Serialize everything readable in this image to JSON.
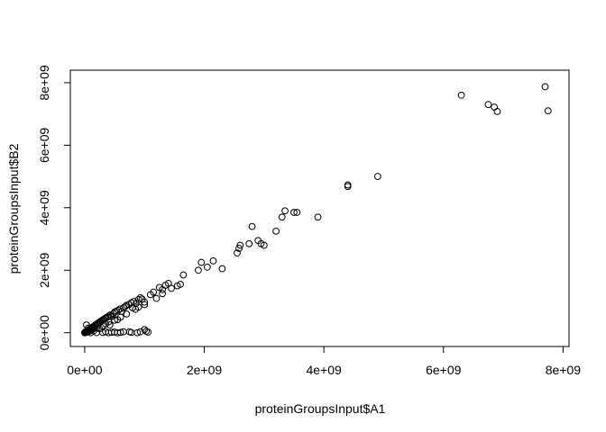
{
  "chart_data": {
    "type": "scatter",
    "title": "",
    "xlabel": "proteinGroupsInput$A1",
    "ylabel": "proteinGroupsInput$B2",
    "xlim": [
      -240000000.0,
      8100000000.0
    ],
    "ylim": [
      -440000000.0,
      8400000000.0
    ],
    "x_ticks": [
      0,
      2000000000.0,
      4000000000.0,
      6000000000.0,
      8000000000.0
    ],
    "x_tick_labels": [
      "0e+00",
      "2e+09",
      "4e+09",
      "6e+09",
      "8e+09"
    ],
    "y_ticks": [
      0,
      2000000000.0,
      4000000000.0,
      6000000000.0,
      8000000000.0
    ],
    "y_tick_labels": [
      "0e+00",
      "2e+09",
      "4e+09",
      "6e+09",
      "8e+09"
    ],
    "grid": false,
    "legend": "none",
    "marker": "open-circle",
    "colors": {
      "point": "#000000",
      "axis": "#000000",
      "background": "#ffffff"
    },
    "points": [
      [
        0,
        0
      ],
      [
        5000000.0,
        10000000.0
      ],
      [
        10000000.0,
        20000000.0
      ],
      [
        15000000.0,
        30000000.0
      ],
      [
        20000000.0,
        10000000.0
      ],
      [
        25000000.0,
        40000000.0
      ],
      [
        30000000.0,
        50000000.0
      ],
      [
        35000000.0,
        20000000.0
      ],
      [
        40000000.0,
        60000000.0
      ],
      [
        50000000.0,
        70000000.0
      ],
      [
        55000000.0,
        30000000.0
      ],
      [
        60000000.0,
        90000000.0
      ],
      [
        70000000.0,
        100000000.0
      ],
      [
        80000000.0,
        50000000.0
      ],
      [
        85000000.0,
        120000000.0
      ],
      [
        100000000.0,
        130000000.0
      ],
      [
        110000000.0,
        80000000.0
      ],
      [
        120000000.0,
        160000000.0
      ],
      [
        130000000.0,
        170000000.0
      ],
      [
        140000000.0,
        190000000.0
      ],
      [
        150000000.0,
        200000000.0
      ],
      [
        160000000.0,
        140000000.0
      ],
      [
        170000000.0,
        230000000.0
      ],
      [
        180000000.0,
        250000000.0
      ],
      [
        200000000.0,
        270000000.0
      ],
      [
        210000000.0,
        290000000.0
      ],
      [
        220000000.0,
        240000000.0
      ],
      [
        230000000.0,
        310000000.0
      ],
      [
        250000000.0,
        330000000.0
      ],
      [
        260000000.0,
        360000000.0
      ],
      [
        280000000.0,
        380000000.0
      ],
      [
        300000000.0,
        410000000.0
      ],
      [
        320000000.0,
        430000000.0
      ],
      [
        340000000.0,
        460000000.0
      ],
      [
        360000000.0,
        480000000.0
      ],
      [
        380000000.0,
        500000000.0
      ],
      [
        400000000.0,
        530000000.0
      ],
      [
        430000000.0,
        570000000.0
      ],
      [
        450000000.0,
        520000000.0
      ],
      [
        480000000.0,
        610000000.0
      ],
      [
        500000000.0,
        660000000.0
      ],
      [
        530000000.0,
        690000000.0
      ],
      [
        560000000.0,
        720000000.0
      ],
      [
        590000000.0,
        760000000.0
      ],
      [
        620000000.0,
        680000000.0
      ],
      [
        650000000.0,
        800000000.0
      ],
      [
        680000000.0,
        840000000.0
      ],
      [
        700000000.0,
        880000000.0
      ],
      [
        740000000.0,
        900000000.0
      ],
      [
        780000000.0,
        960000000.0
      ],
      [
        820000000.0,
        1000000000.0
      ],
      [
        860000000.0,
        940000000.0
      ],
      [
        900000000.0,
        1060000000.0
      ],
      [
        930000000.0,
        1120000000.0
      ],
      [
        960000000.0,
        1080000000.0
      ],
      [
        1000000000.0,
        980000000.0
      ],
      [
        1100000000.0,
        1220000000.0
      ],
      [
        1150000000.0,
        1300000000.0
      ],
      [
        1250000000.0,
        1450000000.0
      ],
      [
        1300000000.0,
        1380000000.0
      ],
      [
        1350000000.0,
        1520000000.0
      ],
      [
        1400000000.0,
        1580000000.0
      ],
      [
        1450000000.0,
        1420000000.0
      ],
      [
        1550000000.0,
        1500000000.0
      ],
      [
        1600000000.0,
        1550000000.0
      ],
      [
        1650000000.0,
        1850000000.0
      ],
      [
        1900000000.0,
        2000000000.0
      ],
      [
        1950000000.0,
        2250000000.0
      ],
      [
        2050000000.0,
        2100000000.0
      ],
      [
        2150000000.0,
        2300000000.0
      ],
      [
        2300000000.0,
        2050000000.0
      ],
      [
        2550000000.0,
        2550000000.0
      ],
      [
        2580000000.0,
        2700000000.0
      ],
      [
        2600000000.0,
        2800000000.0
      ],
      [
        2750000000.0,
        2850000000.0
      ],
      [
        2800000000.0,
        3400000000.0
      ],
      [
        2900000000.0,
        2950000000.0
      ],
      [
        2950000000.0,
        2850000000.0
      ],
      [
        3000000000.0,
        2800000000.0
      ],
      [
        3200000000.0,
        3250000000.0
      ],
      [
        3300000000.0,
        3700000000.0
      ],
      [
        3350000000.0,
        3900000000.0
      ],
      [
        3500000000.0,
        3850000000.0
      ],
      [
        3550000000.0,
        3850000000.0
      ],
      [
        3900000000.0,
        3700000000.0
      ],
      [
        4400000000.0,
        4680000000.0
      ],
      [
        4400000000.0,
        4730000000.0
      ],
      [
        4900000000.0,
        5000000000.0
      ],
      [
        6300000000.0,
        7600000000.0
      ],
      [
        6750000000.0,
        7300000000.0
      ],
      [
        6850000000.0,
        7220000000.0
      ],
      [
        6900000000.0,
        7080000000.0
      ],
      [
        7700000000.0,
        7870000000.0
      ],
      [
        7750000000.0,
        7100000000.0
      ],
      [
        100000000.0,
        0
      ],
      [
        200000000.0,
        5000000.0
      ],
      [
        300000000.0,
        10000000.0
      ],
      [
        350000000.0,
        30000000.0
      ],
      [
        400000000.0,
        0
      ],
      [
        450000000.0,
        15000000.0
      ],
      [
        500000000.0,
        20000000.0
      ],
      [
        550000000.0,
        0
      ],
      [
        600000000.0,
        10000000.0
      ],
      [
        650000000.0,
        30000000.0
      ],
      [
        750000000.0,
        30000000.0
      ],
      [
        780000000.0,
        10000000.0
      ],
      [
        880000000.0,
        0
      ],
      [
        930000000.0,
        30000000.0
      ],
      [
        1000000000.0,
        100000000.0
      ],
      [
        1030000000.0,
        50000000.0
      ],
      [
        1060000000.0,
        20000000.0
      ],
      [
        30000000.0,
        250000000.0
      ],
      [
        60000000.0,
        150000000.0
      ],
      [
        120000000.0,
        100000000.0
      ],
      [
        150000000.0,
        60000000.0
      ],
      [
        200000000.0,
        150000000.0
      ],
      [
        250000000.0,
        120000000.0
      ],
      [
        300000000.0,
        220000000.0
      ],
      [
        350000000.0,
        280000000.0
      ],
      [
        400000000.0,
        350000000.0
      ],
      [
        420000000.0,
        250000000.0
      ],
      [
        500000000.0,
        400000000.0
      ],
      [
        550000000.0,
        420000000.0
      ],
      [
        600000000.0,
        500000000.0
      ],
      [
        700000000.0,
        600000000.0
      ],
      [
        800000000.0,
        800000000.0
      ],
      [
        850000000.0,
        750000000.0
      ],
      [
        900000000.0,
        820000000.0
      ],
      [
        1000000000.0,
        900000000.0
      ],
      [
        1200000000.0,
        1100000000.0
      ],
      [
        1300000000.0,
        1250000000.0
      ]
    ]
  }
}
